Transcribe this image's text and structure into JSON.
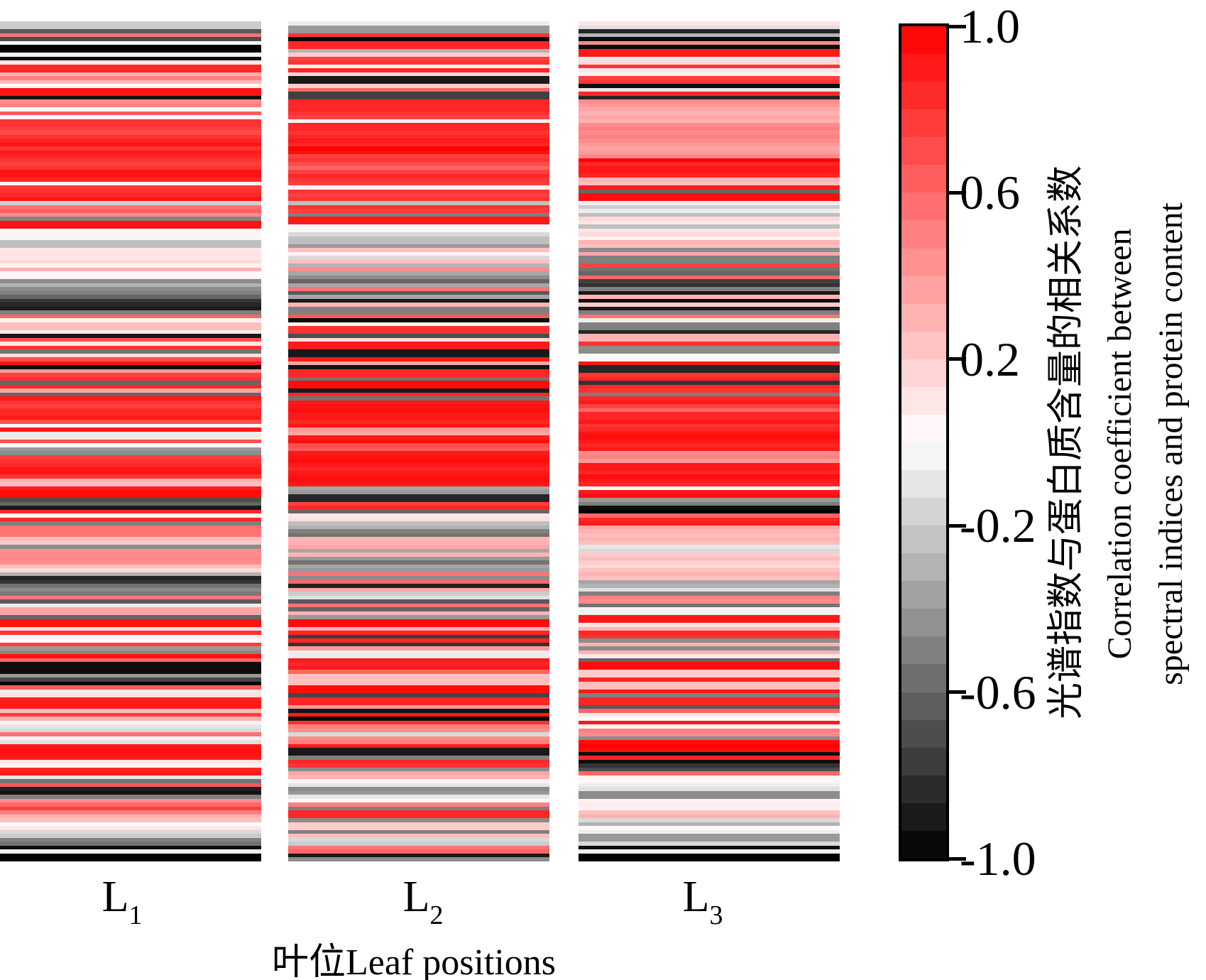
{
  "figure": {
    "xlabel": "叶位Leaf positions",
    "x_ticks": [
      {
        "base": "L",
        "sub": "1"
      },
      {
        "base": "L",
        "sub": "2"
      },
      {
        "base": "L",
        "sub": "3"
      }
    ],
    "colorbar": {
      "tick_labels": [
        "1.0",
        "0.6",
        "0.2",
        "-0.2",
        "-0.6",
        "-1.0"
      ],
      "tick_values": [
        1.0,
        0.6,
        0.2,
        -0.2,
        -0.6,
        -1.0
      ],
      "label_lines": [
        "光谱指数与蛋白质含量的相关系数",
        "Correlation coefficient between",
        "spectral indices and protein content"
      ],
      "vmin": -1.0,
      "vmax": 1.0,
      "steps": 30,
      "positive_color": "#ff0000",
      "zero_color": "#ffffff",
      "negative_color": "#000000"
    }
  },
  "chart_data": {
    "type": "heatmap",
    "title": "",
    "xlabel": "叶位Leaf positions",
    "ylabel_zh": "光谱指数与蛋白质含量的相关系数",
    "ylabel_en": "Correlation coefficient between spectral indices and protein content",
    "categories": [
      "L1",
      "L2",
      "L3"
    ],
    "rows": 215,
    "value_range": [
      -1.0,
      1.0
    ],
    "colormap": "red-white-black",
    "legend_position": "right-colorbar",
    "grid": false,
    "series": [
      {
        "name": "L1",
        "values": [
          -0.2,
          -0.2,
          -0.65,
          0.55,
          -0.7,
          0.0,
          -1.0,
          -1.0,
          -0.05,
          -0.95,
          0.1,
          0.85,
          0.85,
          0.3,
          0.5,
          0.27,
          0.03,
          0.92,
          0.92,
          -0.92,
          0.45,
          0.5,
          0.0,
          0.65,
          0.02,
          0.8,
          0.8,
          0.75,
          0.7,
          0.8,
          0.87,
          0.93,
          0.8,
          0.9,
          0.85,
          0.8,
          0.75,
          0.8,
          0.93,
          0.93,
          0.85,
          0.05,
          0.78,
          0.8,
          0.85,
          0.92,
          -0.18,
          0.55,
          0.62,
          0.45,
          -0.48,
          0.93,
          0.93,
          0.02,
          0.05,
          -0.03,
          -0.25,
          -0.25,
          0.1,
          0.12,
          0.1,
          0.15,
          0.05,
          0.3,
          0.03,
          0.05,
          -0.45,
          -0.3,
          -0.45,
          -0.5,
          -0.6,
          -0.8,
          -0.85,
          -0.9,
          -0.5,
          0.6,
          0.05,
          0.25,
          0.25,
          -0.07,
          -0.9,
          0.7,
          0.1,
          0.8,
          -0.55,
          0.12,
          0.7,
          0.92,
          -0.95,
          0.4,
          0.75,
          0.8,
          -0.6,
          0.85,
          0.35,
          -0.6,
          0.9,
          0.8,
          0.75,
          0.85,
          0.85,
          0.9,
          0.7,
          0.02,
          0.9,
          -0.07,
          -0.07,
          0.7,
          0.02,
          -0.4,
          -0.45,
          0.75,
          0.8,
          0.85,
          0.9,
          0.92,
          0.8,
          0.3,
          0.25,
          0.9,
          0.95,
          0.95,
          -0.7,
          -0.6,
          -0.9,
          0.85,
          0.03,
          0.85,
          -0.5,
          0.55,
          0.55,
          0.55,
          0.25,
          0.22,
          -0.45,
          0.45,
          0.45,
          0.48,
          0.45,
          0.25,
          0.15,
          -0.3,
          -0.85,
          -0.8,
          -0.55,
          -0.45,
          -0.53,
          0.53,
          -0.65,
          -0.07,
          0.35,
          0.35,
          -0.6,
          0.93,
          0.93,
          0.13,
          0.8,
          0.07,
          0.0,
          0.75,
          -0.4,
          -0.47,
          0.93,
          0.6,
          -0.95,
          -0.95,
          -0.95,
          -0.4,
          -0.73,
          -1.0,
          0.65,
          -0.07,
          0.13,
          0.87,
          0.9,
          0.9,
          0.27,
          0.75,
          0.3,
          0.05,
          -0.1,
          -0.15,
          0.55,
          0.05,
          -0.12,
          0.9,
          0.93,
          0.93,
          0.9,
          0.1,
          0.05,
          0.85,
          0.9,
          -0.1,
          -0.55,
          0.65,
          -0.87,
          -0.93,
          -0.5,
          0.45,
          0.6,
          0.75,
          0.5,
          0.3,
          0.25,
          0.02,
          0.1,
          -0.15,
          -0.2,
          -0.5,
          -0.55,
          -0.95,
          -0.07,
          -1.0,
          -1.0
        ]
      },
      {
        "name": "L2",
        "values": [
          -0.07,
          -0.4,
          -0.4,
          0.8,
          -1.0,
          0.85,
          0.85,
          -0.3,
          0.2,
          0.75,
          0.8,
          0.05,
          0.85,
          0.15,
          -0.9,
          -0.9,
          0.2,
          0.6,
          -0.75,
          -0.75,
          0.85,
          0.85,
          0.85,
          0.8,
          0.75,
          0.03,
          0.85,
          0.85,
          0.8,
          0.85,
          0.9,
          0.85,
          1.0,
          0.95,
          0.75,
          0.8,
          0.7,
          0.6,
          0.75,
          0.85,
          0.8,
          0.75,
          0.05,
          0.8,
          0.75,
          0.8,
          -0.25,
          0.8,
          0.75,
          -0.5,
          0.9,
          0.9,
          0.02,
          0.03,
          -0.15,
          -0.25,
          -0.25,
          -0.4,
          0.25,
          0.03,
          -0.15,
          0.25,
          -0.3,
          0.45,
          -0.35,
          -0.45,
          -0.6,
          -0.35,
          0.55,
          -0.65,
          -0.35,
          -0.9,
          0.3,
          -0.5,
          -0.5,
          0.65,
          -0.95,
          0.05,
          0.8,
          0.8,
          -0.7,
          0.15,
          0.9,
          0.9,
          -0.9,
          -0.9,
          0.9,
          0.35,
          -0.92,
          0.85,
          0.85,
          -0.55,
          0.95,
          0.95,
          -0.9,
          0.85,
          -0.55,
          0.9,
          0.93,
          0.95,
          0.9,
          0.9,
          0.85,
          0.9,
          0.4,
          0.35,
          0.9,
          0.95,
          0.7,
          0.65,
          0.9,
          0.93,
          0.95,
          0.9,
          0.85,
          0.9,
          0.93,
          0.95,
          0.9,
          -0.35,
          -0.4,
          -0.85,
          -0.85,
          0.75,
          0.85,
          -0.6,
          0.1,
          0.12,
          -0.25,
          -0.3,
          -0.5,
          -0.55,
          0.3,
          0.3,
          0.35,
          -0.35,
          0.3,
          -0.4,
          -0.55,
          -0.35,
          -0.4,
          0.55,
          -0.45,
          0.6,
          -0.87,
          0.35,
          -0.2,
          -0.12,
          -0.65,
          0.55,
          -0.6,
          0.3,
          -0.4,
          0.95,
          0.95,
          0.3,
          0.85,
          -0.75,
          0.85,
          -0.8,
          0.4,
          -0.07,
          -0.07,
          0.9,
          0.85,
          0.9,
          0.6,
          0.25,
          0.25,
          0.25,
          0.95,
          0.95,
          -0.73,
          0.85,
          0.85,
          0.4,
          -0.92,
          0.9,
          -0.95,
          0.8,
          0.5,
          0.45,
          -0.15,
          0.45,
          0.5,
          0.9,
          -0.9,
          -0.9,
          -0.5,
          0.85,
          0.8,
          -0.45,
          0.35,
          0.3,
          0.05,
          -0.1,
          -0.45,
          -0.4,
          -0.1,
          0.02,
          0.5,
          -0.5,
          0.85,
          0.85,
          -0.45,
          0.2,
          0.2,
          -0.5,
          0.25,
          -0.15,
          -0.2,
          0.55,
          0.6,
          -0.9,
          -0.45
        ]
      },
      {
        "name": "L3",
        "values": [
          0.1,
          -0.12,
          -0.85,
          -0.3,
          -0.95,
          0.45,
          -0.95,
          0.9,
          0.9,
          -0.1,
          0.15,
          0.8,
          0.1,
          0.05,
          0.75,
          0.8,
          -0.95,
          -0.1,
          0.85,
          -0.85,
          0.45,
          0.4,
          0.35,
          0.3,
          0.35,
          0.3,
          0.45,
          0.5,
          0.45,
          0.5,
          0.45,
          0.4,
          0.35,
          0.4,
          0.45,
          1.0,
          0.85,
          0.9,
          0.9,
          0.85,
          0.3,
          0.25,
          0.9,
          -0.6,
          0.95,
          0.95,
          -0.07,
          -0.2,
          -0.07,
          -0.25,
          0.15,
          0.1,
          -0.25,
          0.1,
          0.15,
          0.05,
          0.3,
          0.25,
          -0.45,
          0.35,
          -0.5,
          -0.5,
          0.75,
          -0.55,
          -0.6,
          0.6,
          -0.75,
          -0.8,
          -0.5,
          -0.9,
          0.3,
          -0.95,
          0.2,
          -0.9,
          -0.5,
          0.55,
          -0.07,
          -0.5,
          -0.5,
          -0.85,
          0.3,
          0.3,
          0.8,
          -0.45,
          -0.45,
          0.02,
          0.02,
          0.9,
          -0.85,
          -0.85,
          0.8,
          0.85,
          -0.8,
          0.85,
          0.8,
          -0.5,
          0.85,
          0.9,
          0.75,
          0.6,
          0.85,
          0.85,
          0.9,
          0.8,
          0.85,
          0.93,
          0.95,
          0.9,
          0.85,
          0.9,
          0.45,
          0.5,
          0.4,
          0.9,
          0.9,
          0.85,
          0.95,
          0.9,
          0.85,
          0.03,
          0.9,
          0.95,
          -0.4,
          -0.5,
          -0.95,
          -1.0,
          0.6,
          0.85,
          0.9,
          0.35,
          0.3,
          0.25,
          0.3,
          0.25,
          -0.1,
          -0.15,
          0.2,
          0.25,
          0.2,
          0.15,
          0.25,
          0.3,
          0.25,
          -0.35,
          -0.3,
          -0.12,
          -0.5,
          0.5,
          0.45,
          -0.55,
          -0.05,
          -0.05,
          0.9,
          0.9,
          0.1,
          0.3,
          0.85,
          0.8,
          -0.45,
          0.3,
          -0.45,
          0.3,
          0.1,
          -0.6,
          0.95,
          0.95,
          0.2,
          0.2,
          0.85,
          0.25,
          0.25,
          0.9,
          -0.5,
          0.85,
          0.85,
          -0.65,
          0.6,
          0.1,
          0.02,
          0.9,
          0.05,
          0.5,
          0.45,
          -0.45,
          0.95,
          1.0,
          0.95,
          -0.95,
          0.85,
          -0.95,
          -0.8,
          -0.7,
          0.6,
          0.05,
          0.03,
          -0.07,
          -0.12,
          -0.45,
          -0.45,
          0.05,
          0.08,
          0.05,
          0.25,
          0.3,
          -0.15,
          -0.3,
          0.02,
          -0.07,
          -0.4,
          -0.4,
          -0.15,
          -0.95,
          -0.07,
          -1.0,
          -1.0
        ]
      }
    ]
  }
}
